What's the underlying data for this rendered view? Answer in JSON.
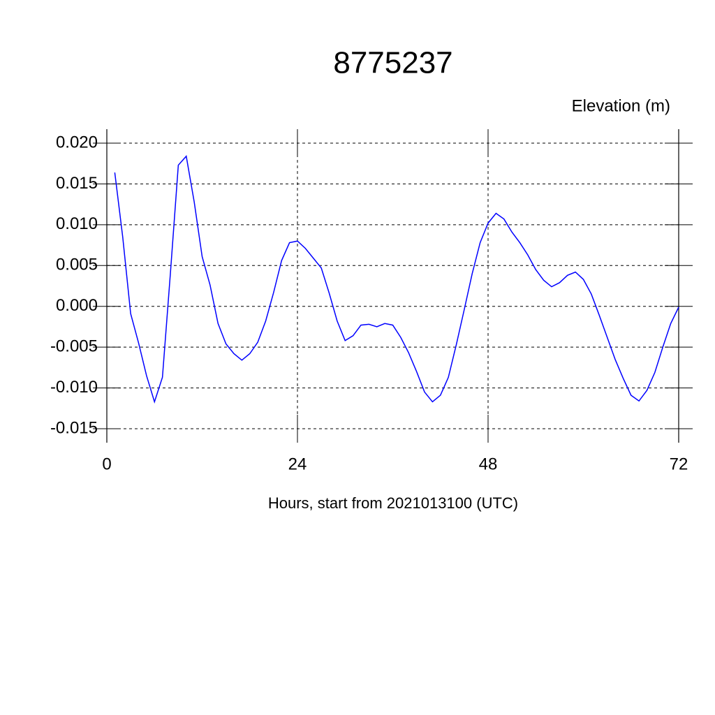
{
  "chart_data": {
    "type": "line",
    "title": "8775237",
    "y_label": "Elevation (m)",
    "x_label": "Hours, start from 2021013100 (UTC)",
    "x": [
      1,
      2,
      3,
      4,
      5,
      6,
      7,
      8,
      9,
      10,
      11,
      12,
      13,
      14,
      15,
      16,
      17,
      18,
      19,
      20,
      21,
      22,
      23,
      24,
      25,
      26,
      27,
      28,
      29,
      30,
      31,
      32,
      33,
      34,
      35,
      36,
      37,
      38,
      39,
      40,
      41,
      42,
      43,
      44,
      45,
      46,
      47,
      48,
      49,
      50,
      51,
      52,
      53,
      54,
      55,
      56,
      57,
      58,
      59,
      60,
      61,
      62,
      63,
      64,
      65,
      66,
      67,
      68,
      69,
      70,
      71,
      72
    ],
    "series": [
      {
        "color": "#0000ff",
        "values": [
          0.0164,
          0.0085,
          -0.0009,
          -0.0045,
          -0.0085,
          -0.0117,
          -0.0087,
          0.004,
          0.0173,
          0.0184,
          0.0128,
          0.0061,
          0.0026,
          -0.0021,
          -0.0046,
          -0.0058,
          -0.0066,
          -0.0058,
          -0.0044,
          -0.0018,
          0.0017,
          0.0056,
          0.0078,
          0.008,
          0.0071,
          0.0059,
          0.0047,
          0.0016,
          -0.0018,
          -0.0042,
          -0.0036,
          -0.0023,
          -0.0022,
          -0.0025,
          -0.0021,
          -0.0023,
          -0.0038,
          -0.0057,
          -0.008,
          -0.0105,
          -0.0117,
          -0.0109,
          -0.0087,
          -0.0047,
          -0.0004,
          0.004,
          0.0078,
          0.0102,
          0.0114,
          0.0107,
          0.0091,
          0.0078,
          0.0063,
          0.0045,
          0.0032,
          0.0024,
          0.0029,
          0.0038,
          0.0042,
          0.0033,
          0.0015,
          -0.0011,
          -0.0038,
          -0.0065,
          -0.0088,
          -0.0109,
          -0.0116,
          -0.0103,
          -0.0081,
          -0.005,
          -0.0021,
          -0.0001
        ]
      }
    ],
    "xlim": [
      0,
      72
    ],
    "xticks": [
      0,
      24,
      48,
      72
    ],
    "ylim": [
      -0.015,
      0.02
    ],
    "yticks": [
      {
        "value": -0.015,
        "label": "-0.015"
      },
      {
        "value": -0.01,
        "label": "-0.010"
      },
      {
        "value": -0.005,
        "label": "-0.005"
      },
      {
        "value": 0,
        "label": "0.000"
      },
      {
        "value": 0.005,
        "label": "0.005"
      },
      {
        "value": 0.01,
        "label": "0.010"
      },
      {
        "value": 0.015,
        "label": "0.015"
      },
      {
        "value": 0.02,
        "label": "0.020"
      }
    ],
    "grid": true
  }
}
